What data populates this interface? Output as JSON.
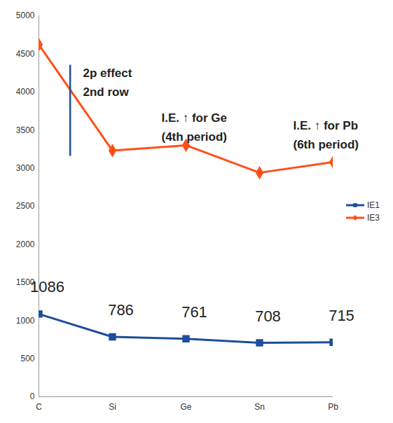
{
  "chart_data": {
    "type": "line",
    "categories": [
      "C",
      "Si",
      "Ge",
      "Sn",
      "Pb"
    ],
    "series": [
      {
        "name": "IE1",
        "color": "#1e4d9b",
        "marker": "square",
        "line_style": "solid",
        "data_labels": true,
        "values": [
          1086,
          786,
          761,
          708,
          715
        ]
      },
      {
        "name": "IE3",
        "color": "#ff4f17",
        "marker": "diamond",
        "line_style": "solid",
        "values": [
          4620,
          3230,
          3300,
          2940,
          3080
        ]
      }
    ],
    "ylim": [
      0,
      5000
    ],
    "yticks": [
      0,
      500,
      1000,
      1500,
      2000,
      2500,
      3000,
      3500,
      4000,
      4500,
      5000
    ],
    "grid": false,
    "legend": "right",
    "annotations": [
      {
        "text": "2p effect\n2nd row",
        "x": "Si",
        "y": 4150
      },
      {
        "text": "I.E. ↑ for Ge\n(4th period)",
        "x": "Ge",
        "y": 3565
      },
      {
        "text": "I.E. ↑ for Pb\n(6th period)",
        "x": "Pb",
        "y": 3465
      }
    ]
  }
}
